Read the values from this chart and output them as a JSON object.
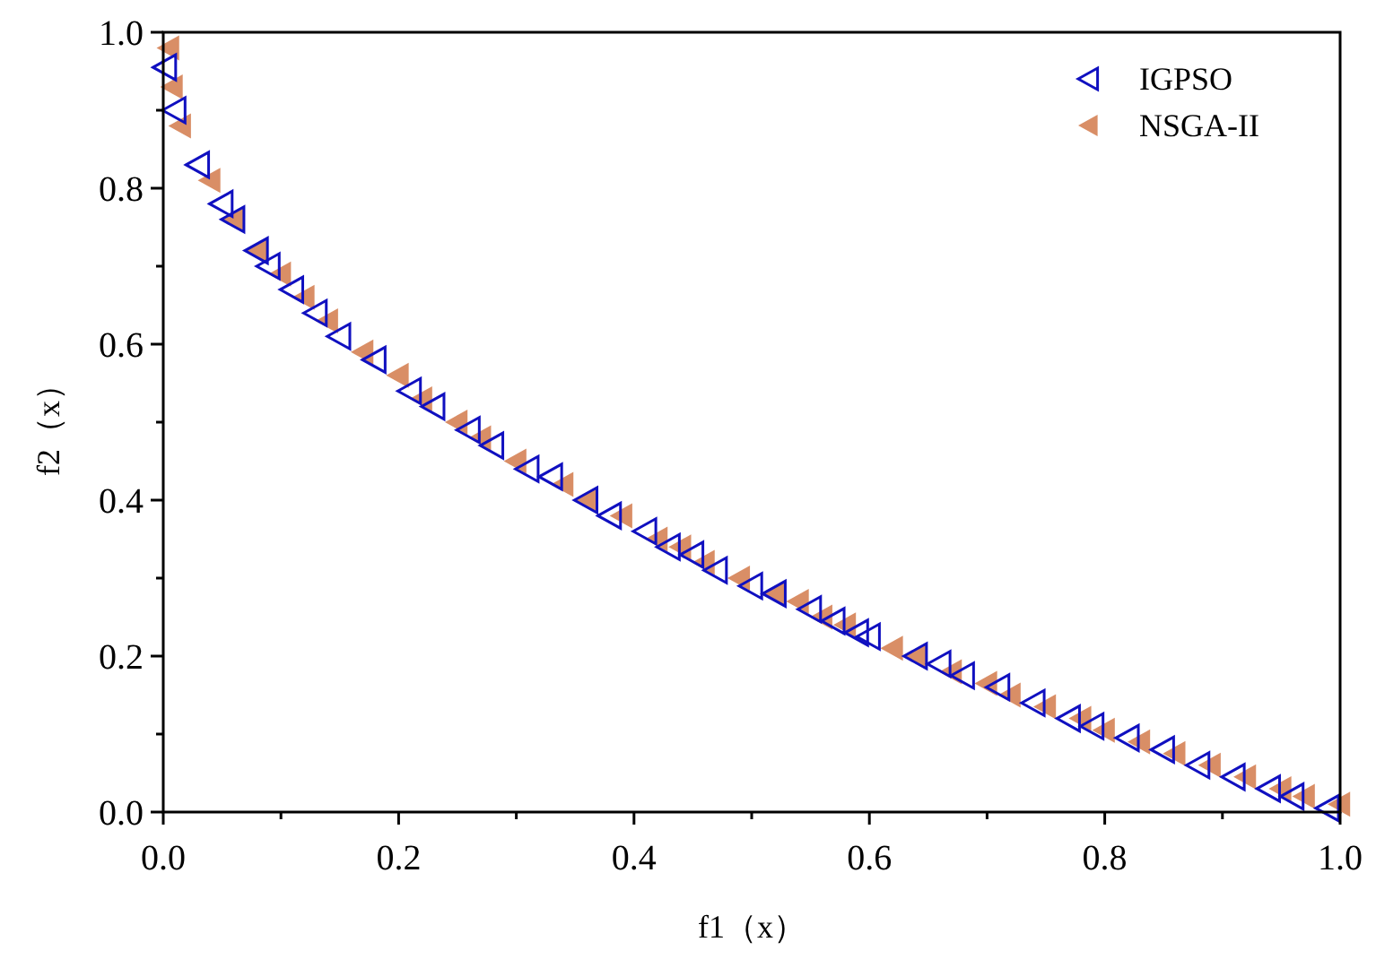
{
  "chart_data": {
    "type": "scatter",
    "xlabel": "f1（x）",
    "ylabel": "f2（x）",
    "xlim": [
      0,
      1
    ],
    "ylim": [
      0,
      1
    ],
    "xticks": [
      {
        "value": 0,
        "label": "0.0"
      },
      {
        "value": 0.1,
        "label": null
      },
      0.2,
      {
        "value": 0.3,
        "label": null
      },
      0.4,
      {
        "value": 0.5,
        "label": null
      },
      0.6,
      {
        "value": 0.7,
        "label": null
      },
      0.8,
      {
        "value": 0.9,
        "label": null
      },
      {
        "value": 1,
        "label": "1.0"
      }
    ],
    "yticks": [
      {
        "value": 0,
        "label": "0.0"
      },
      {
        "value": 0.1,
        "label": null
      },
      0.2,
      {
        "value": 0.3,
        "label": null
      },
      0.4,
      {
        "value": 0.5,
        "label": null
      },
      0.6,
      {
        "value": 0.7,
        "label": null
      },
      0.8,
      {
        "value": 0.9,
        "label": null
      },
      {
        "value": 1,
        "label": "1.0"
      }
    ],
    "grid": false,
    "legend": "top right",
    "marker": "triangle",
    "series": [
      {
        "name": "IGPSO",
        "color": "#1010c0",
        "x": [
          0.002,
          0.01,
          0.03,
          0.05,
          0.06,
          0.08,
          0.09,
          0.11,
          0.13,
          0.15,
          0.18,
          0.21,
          0.23,
          0.26,
          0.28,
          0.31,
          0.33,
          0.36,
          0.38,
          0.41,
          0.43,
          0.45,
          0.47,
          0.5,
          0.52,
          0.55,
          0.57,
          0.59,
          0.6,
          0.64,
          0.66,
          0.68,
          0.71,
          0.74,
          0.77,
          0.79,
          0.82,
          0.85,
          0.88,
          0.91,
          0.94,
          0.96,
          0.99
        ],
        "values": [
          0.955,
          0.9,
          0.83,
          0.78,
          0.76,
          0.72,
          0.7,
          0.67,
          0.64,
          0.61,
          0.58,
          0.54,
          0.52,
          0.49,
          0.47,
          0.44,
          0.43,
          0.4,
          0.38,
          0.36,
          0.34,
          0.33,
          0.31,
          0.29,
          0.28,
          0.26,
          0.245,
          0.23,
          0.225,
          0.2,
          0.19,
          0.175,
          0.16,
          0.14,
          0.12,
          0.11,
          0.095,
          0.08,
          0.06,
          0.045,
          0.03,
          0.02,
          0.005
        ]
      },
      {
        "name": "NSGA-II",
        "color": "#d98e66",
        "x": [
          0.005,
          0.008,
          0.015,
          0.04,
          0.06,
          0.08,
          0.1,
          0.12,
          0.14,
          0.17,
          0.2,
          0.22,
          0.25,
          0.27,
          0.3,
          0.34,
          0.36,
          0.39,
          0.42,
          0.44,
          0.46,
          0.49,
          0.52,
          0.54,
          0.56,
          0.58,
          0.62,
          0.64,
          0.67,
          0.7,
          0.72,
          0.75,
          0.78,
          0.8,
          0.83,
          0.86,
          0.89,
          0.92,
          0.95,
          0.97,
          1.0
        ],
        "values": [
          0.98,
          0.93,
          0.88,
          0.81,
          0.76,
          0.72,
          0.69,
          0.66,
          0.63,
          0.59,
          0.56,
          0.53,
          0.5,
          0.48,
          0.45,
          0.42,
          0.4,
          0.38,
          0.35,
          0.34,
          0.32,
          0.3,
          0.28,
          0.27,
          0.25,
          0.24,
          0.21,
          0.2,
          0.18,
          0.165,
          0.15,
          0.135,
          0.12,
          0.105,
          0.09,
          0.075,
          0.06,
          0.045,
          0.03,
          0.02,
          0.01
        ]
      }
    ]
  }
}
